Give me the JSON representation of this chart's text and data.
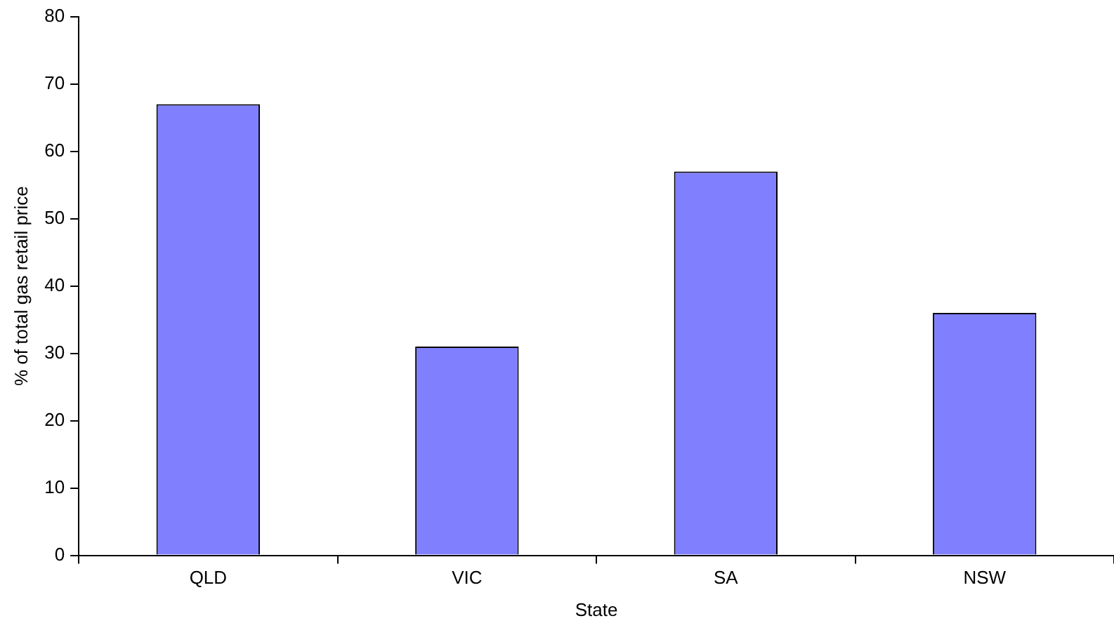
{
  "chart_data": {
    "type": "bar",
    "xlabel": "State",
    "ylabel": "% of total gas retail price",
    "categories": [
      "QLD",
      "VIC",
      "SA",
      "NSW"
    ],
    "values": [
      67,
      31,
      57,
      36
    ],
    "color": "#8080ff",
    "ylim": [
      0,
      80
    ],
    "yticks": [
      0,
      10,
      20,
      30,
      40,
      50,
      60,
      70,
      80
    ],
    "grid": false,
    "legend": false
  }
}
